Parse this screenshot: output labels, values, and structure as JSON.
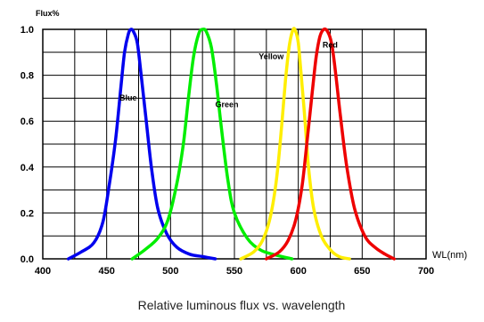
{
  "chart_data": {
    "type": "line",
    "title": "Relative luminous flux vs. wavelength",
    "xlabel": "WL(nm)",
    "ylabel": "Flux%",
    "xlim": [
      400,
      700
    ],
    "ylim": [
      0,
      1.0
    ],
    "x_ticks": [
      "400",
      "450",
      "500",
      "550",
      "600",
      "650",
      "700"
    ],
    "y_ticks": [
      "0.0",
      "0.2",
      "0.4",
      "0.6",
      "0.8",
      "1.0"
    ],
    "grid": true,
    "series": [
      {
        "name": "Blue",
        "color": "#0000ee",
        "x": [
          420,
          430,
          440,
          447,
          452,
          457,
          461,
          464,
          467,
          469,
          471,
          474,
          477,
          481,
          485,
          490,
          497,
          505,
          515,
          525,
          535
        ],
        "y": [
          0.0,
          0.03,
          0.07,
          0.16,
          0.32,
          0.52,
          0.74,
          0.9,
          0.98,
          1.0,
          0.99,
          0.94,
          0.8,
          0.6,
          0.4,
          0.22,
          0.11,
          0.05,
          0.02,
          0.01,
          0.0
        ]
      },
      {
        "name": "Green",
        "color": "#00ee00",
        "x": [
          470,
          480,
          490,
          498,
          505,
          510,
          514,
          518,
          522,
          525,
          528,
          532,
          536,
          540,
          545,
          550,
          560,
          570,
          580,
          595
        ],
        "y": [
          0.0,
          0.04,
          0.09,
          0.17,
          0.33,
          0.5,
          0.7,
          0.88,
          0.98,
          1.0,
          0.99,
          0.92,
          0.76,
          0.56,
          0.34,
          0.2,
          0.09,
          0.04,
          0.02,
          0.0
        ]
      },
      {
        "name": "Yellow",
        "color": "#ffee00",
        "x": [
          555,
          565,
          572,
          578,
          583,
          587,
          590,
          593,
          596,
          598,
          600,
          602,
          605,
          608,
          612,
          618,
          625,
          632,
          640
        ],
        "y": [
          0.0,
          0.03,
          0.08,
          0.18,
          0.35,
          0.58,
          0.78,
          0.93,
          1.0,
          0.99,
          0.94,
          0.82,
          0.62,
          0.4,
          0.22,
          0.1,
          0.04,
          0.01,
          0.0
        ]
      },
      {
        "name": "Red",
        "color": "#ee0000",
        "x": [
          575,
          585,
          592,
          598,
          603,
          607,
          611,
          614,
          617,
          620,
          623,
          626,
          629,
          633,
          638,
          644,
          652,
          660,
          668,
          675
        ],
        "y": [
          0.0,
          0.03,
          0.08,
          0.17,
          0.32,
          0.52,
          0.73,
          0.88,
          0.97,
          1.0,
          0.99,
          0.94,
          0.82,
          0.62,
          0.4,
          0.22,
          0.1,
          0.05,
          0.02,
          0.0
        ]
      }
    ],
    "annotations": [
      {
        "text": "Blue",
        "x": 460,
        "y": 0.69
      },
      {
        "text": "Green",
        "x": 535,
        "y": 0.66
      },
      {
        "text": "Yellow",
        "x": 569,
        "y": 0.87
      },
      {
        "text": "Red",
        "x": 619,
        "y": 0.92
      }
    ]
  }
}
